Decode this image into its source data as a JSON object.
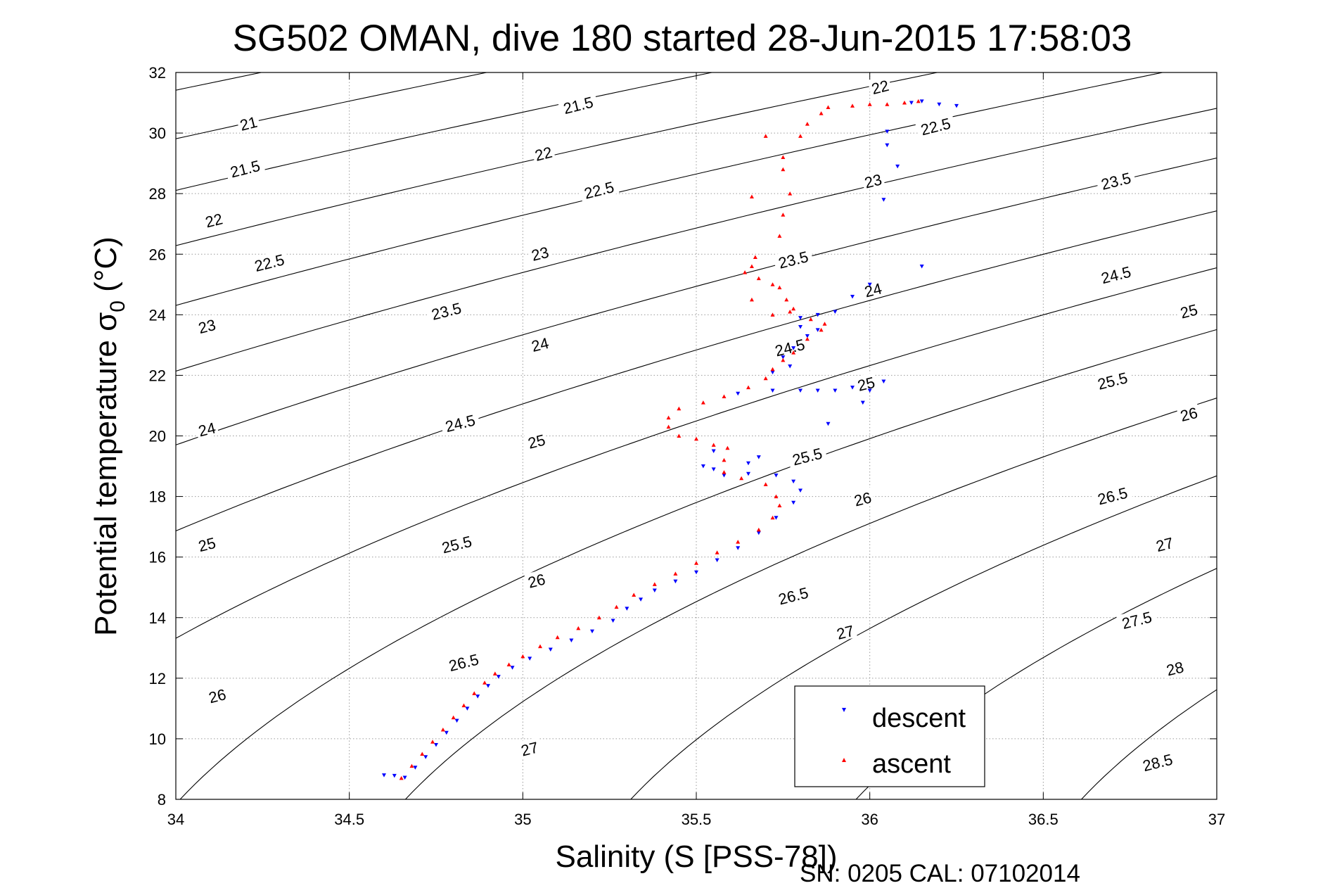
{
  "chart_data": {
    "type": "scatter",
    "title": "SG502 OMAN, dive 180 started 28-Jun-2015 17:58:03",
    "xlabel": "Salinity (S [PSS-78])",
    "ylabel_main": "Potential temperature σ",
    "ylabel_sub": "0",
    "ylabel_unit": " (°C)",
    "xlim": [
      34,
      37
    ],
    "ylim": [
      8,
      32
    ],
    "xticks": [
      34,
      34.5,
      35,
      35.5,
      36,
      36.5,
      37
    ],
    "xtick_labels": [
      "34",
      "34.5",
      "35",
      "35.5",
      "36",
      "36.5",
      "37"
    ],
    "yticks": [
      8,
      10,
      12,
      14,
      16,
      18,
      20,
      22,
      24,
      26,
      28,
      30,
      32
    ],
    "ytick_labels": [
      "8",
      "10",
      "12",
      "14",
      "16",
      "18",
      "20",
      "22",
      "24",
      "26",
      "28",
      "30",
      "32"
    ],
    "grid": true,
    "footer": "SN: 0205  CAL: 07102014",
    "legend": {
      "position": "bottom-right",
      "entries": [
        "descent",
        "ascent"
      ]
    },
    "density_contours": {
      "levels": [
        21,
        21.5,
        22,
        22.5,
        23,
        23.5,
        24,
        24.5,
        25,
        25.5,
        26,
        26.5,
        27,
        27.5,
        28,
        28.5
      ],
      "labels": [
        {
          "text": "21",
          "x": 34.21,
          "y": 30.3
        },
        {
          "text": "21.5",
          "x": 34.2,
          "y": 28.8
        },
        {
          "text": "22",
          "x": 34.11,
          "y": 27.1
        },
        {
          "text": "22.5",
          "x": 34.27,
          "y": 25.7
        },
        {
          "text": "23",
          "x": 34.09,
          "y": 23.6
        },
        {
          "text": "23.5",
          "x": 34.78,
          "y": 24.1
        },
        {
          "text": "24",
          "x": 34.09,
          "y": 20.2
        },
        {
          "text": "24.5",
          "x": 34.82,
          "y": 20.4
        },
        {
          "text": "25",
          "x": 34.09,
          "y": 16.4
        },
        {
          "text": "25.5",
          "x": 34.81,
          "y": 16.4
        },
        {
          "text": "26",
          "x": 34.12,
          "y": 11.4
        },
        {
          "text": "26.5",
          "x": 34.83,
          "y": 12.5
        },
        {
          "text": "27",
          "x": 35.02,
          "y": 9.65
        },
        {
          "text": "21.5",
          "x": 35.16,
          "y": 30.9
        },
        {
          "text": "22",
          "x": 35.06,
          "y": 29.3
        },
        {
          "text": "22.5",
          "x": 35.22,
          "y": 28.1
        },
        {
          "text": "23",
          "x": 35.05,
          "y": 26.0
        },
        {
          "text": "24",
          "x": 35.05,
          "y": 23.0
        },
        {
          "text": "25",
          "x": 35.04,
          "y": 19.8
        },
        {
          "text": "26",
          "x": 35.04,
          "y": 15.2
        },
        {
          "text": "23.5",
          "x": 35.78,
          "y": 25.8
        },
        {
          "text": "24.5",
          "x": 35.77,
          "y": 22.9
        },
        {
          "text": "25.5",
          "x": 35.82,
          "y": 19.3
        },
        {
          "text": "26.5",
          "x": 35.78,
          "y": 14.7
        },
        {
          "text": "27",
          "x": 35.93,
          "y": 13.5
        },
        {
          "text": "22",
          "x": 36.03,
          "y": 31.5
        },
        {
          "text": "22.5",
          "x": 36.19,
          "y": 30.2
        },
        {
          "text": "23",
          "x": 36.01,
          "y": 28.4
        },
        {
          "text": "24",
          "x": 36.01,
          "y": 24.8
        },
        {
          "text": "25",
          "x": 35.99,
          "y": 21.7
        },
        {
          "text": "26",
          "x": 35.98,
          "y": 17.9
        },
        {
          "text": "23.5",
          "x": 36.71,
          "y": 28.4
        },
        {
          "text": "24.5",
          "x": 36.71,
          "y": 25.3
        },
        {
          "text": "25.5",
          "x": 36.7,
          "y": 21.8
        },
        {
          "text": "26.5",
          "x": 36.7,
          "y": 18.0
        },
        {
          "text": "27",
          "x": 36.85,
          "y": 16.4
        },
        {
          "text": "27.5",
          "x": 36.77,
          "y": 13.9
        },
        {
          "text": "28",
          "x": 36.88,
          "y": 12.3
        },
        {
          "text": "28.5",
          "x": 36.83,
          "y": 9.2
        },
        {
          "text": "25",
          "x": 36.92,
          "y": 24.1
        },
        {
          "text": "26",
          "x": 36.92,
          "y": 20.7
        }
      ]
    },
    "series": [
      {
        "name": "descent",
        "color": "#0000ff",
        "marker": "triangle-down",
        "points": [
          [
            34.6,
            8.8
          ],
          [
            34.63,
            8.78
          ],
          [
            34.66,
            8.72
          ],
          [
            34.69,
            9.05
          ],
          [
            34.72,
            9.4
          ],
          [
            34.75,
            9.8
          ],
          [
            34.78,
            10.2
          ],
          [
            34.81,
            10.6
          ],
          [
            34.84,
            11.0
          ],
          [
            34.87,
            11.4
          ],
          [
            34.9,
            11.75
          ],
          [
            34.93,
            12.05
          ],
          [
            34.97,
            12.35
          ],
          [
            35.02,
            12.65
          ],
          [
            35.08,
            12.95
          ],
          [
            35.14,
            13.25
          ],
          [
            35.2,
            13.55
          ],
          [
            35.26,
            13.9
          ],
          [
            35.3,
            14.3
          ],
          [
            35.34,
            14.6
          ],
          [
            35.38,
            14.9
          ],
          [
            35.44,
            15.2
          ],
          [
            35.5,
            15.5
          ],
          [
            35.56,
            15.9
          ],
          [
            35.62,
            16.3
          ],
          [
            35.68,
            16.8
          ],
          [
            35.73,
            17.3
          ],
          [
            35.78,
            17.8
          ],
          [
            35.8,
            18.2
          ],
          [
            35.78,
            18.5
          ],
          [
            35.73,
            18.7
          ],
          [
            35.65,
            18.75
          ],
          [
            35.58,
            18.7
          ],
          [
            35.55,
            18.9
          ],
          [
            35.52,
            19.0
          ],
          [
            35.65,
            19.1
          ],
          [
            35.68,
            19.3
          ],
          [
            35.55,
            19.5
          ],
          [
            35.62,
            21.4
          ],
          [
            35.72,
            21.5
          ],
          [
            35.8,
            21.5
          ],
          [
            35.85,
            21.5
          ],
          [
            35.9,
            21.5
          ],
          [
            35.95,
            21.6
          ],
          [
            36.0,
            21.5
          ],
          [
            36.04,
            21.8
          ],
          [
            35.98,
            21.1
          ],
          [
            35.88,
            20.4
          ],
          [
            35.77,
            22.3
          ],
          [
            35.72,
            22.1
          ],
          [
            35.75,
            22.6
          ],
          [
            35.78,
            22.9
          ],
          [
            35.82,
            23.3
          ],
          [
            35.85,
            23.5
          ],
          [
            35.8,
            23.6
          ],
          [
            35.8,
            23.9
          ],
          [
            35.85,
            24.0
          ],
          [
            35.9,
            24.1
          ],
          [
            35.95,
            24.6
          ],
          [
            36.0,
            25.0
          ],
          [
            36.05,
            30.05
          ],
          [
            36.05,
            29.6
          ],
          [
            36.08,
            28.9
          ],
          [
            36.04,
            27.8
          ],
          [
            36.15,
            25.6
          ],
          [
            36.12,
            31.0
          ],
          [
            36.15,
            31.05
          ],
          [
            36.2,
            30.95
          ],
          [
            36.25,
            30.9
          ]
        ]
      },
      {
        "name": "ascent",
        "color": "#ff0000",
        "marker": "triangle-up",
        "points": [
          [
            34.65,
            8.7
          ],
          [
            34.68,
            9.1
          ],
          [
            34.71,
            9.5
          ],
          [
            34.74,
            9.9
          ],
          [
            34.77,
            10.3
          ],
          [
            34.8,
            10.7
          ],
          [
            34.83,
            11.1
          ],
          [
            34.86,
            11.5
          ],
          [
            34.89,
            11.85
          ],
          [
            34.92,
            12.15
          ],
          [
            34.96,
            12.45
          ],
          [
            35.0,
            12.72
          ],
          [
            35.05,
            13.05
          ],
          [
            35.1,
            13.35
          ],
          [
            35.16,
            13.65
          ],
          [
            35.22,
            14.0
          ],
          [
            35.27,
            14.35
          ],
          [
            35.32,
            14.75
          ],
          [
            35.38,
            15.1
          ],
          [
            35.44,
            15.45
          ],
          [
            35.5,
            15.8
          ],
          [
            35.56,
            16.15
          ],
          [
            35.62,
            16.5
          ],
          [
            35.68,
            16.9
          ],
          [
            35.72,
            17.3
          ],
          [
            35.74,
            17.7
          ],
          [
            35.73,
            18.0
          ],
          [
            35.7,
            18.4
          ],
          [
            35.63,
            18.6
          ],
          [
            35.58,
            18.8
          ],
          [
            35.58,
            19.2
          ],
          [
            35.59,
            19.6
          ],
          [
            35.55,
            19.7
          ],
          [
            35.5,
            19.9
          ],
          [
            35.45,
            20.0
          ],
          [
            35.42,
            20.3
          ],
          [
            35.42,
            20.6
          ],
          [
            35.45,
            20.9
          ],
          [
            35.52,
            21.1
          ],
          [
            35.58,
            21.3
          ],
          [
            35.65,
            21.6
          ],
          [
            35.7,
            21.9
          ],
          [
            35.72,
            22.2
          ],
          [
            35.75,
            22.5
          ],
          [
            35.78,
            22.75
          ],
          [
            35.82,
            23.2
          ],
          [
            35.86,
            23.5
          ],
          [
            35.87,
            23.7
          ],
          [
            35.83,
            23.85
          ],
          [
            35.78,
            24.2
          ],
          [
            35.76,
            24.5
          ],
          [
            35.74,
            24.9
          ],
          [
            35.72,
            25.0
          ],
          [
            35.68,
            25.2
          ],
          [
            35.66,
            25.6
          ],
          [
            35.67,
            25.9
          ],
          [
            35.64,
            25.4
          ],
          [
            35.66,
            24.5
          ],
          [
            35.72,
            24.0
          ],
          [
            35.77,
            24.1
          ],
          [
            35.74,
            26.6
          ],
          [
            35.75,
            27.3
          ],
          [
            35.77,
            28.0
          ],
          [
            35.75,
            28.8
          ],
          [
            35.75,
            29.2
          ],
          [
            35.8,
            29.9
          ],
          [
            35.82,
            30.3
          ],
          [
            35.86,
            30.65
          ],
          [
            35.88,
            30.85
          ],
          [
            35.95,
            30.9
          ],
          [
            36.0,
            30.95
          ],
          [
            36.05,
            30.95
          ],
          [
            36.1,
            31.0
          ],
          [
            36.14,
            31.05
          ],
          [
            35.7,
            29.9
          ],
          [
            35.66,
            27.9
          ]
        ]
      }
    ]
  }
}
